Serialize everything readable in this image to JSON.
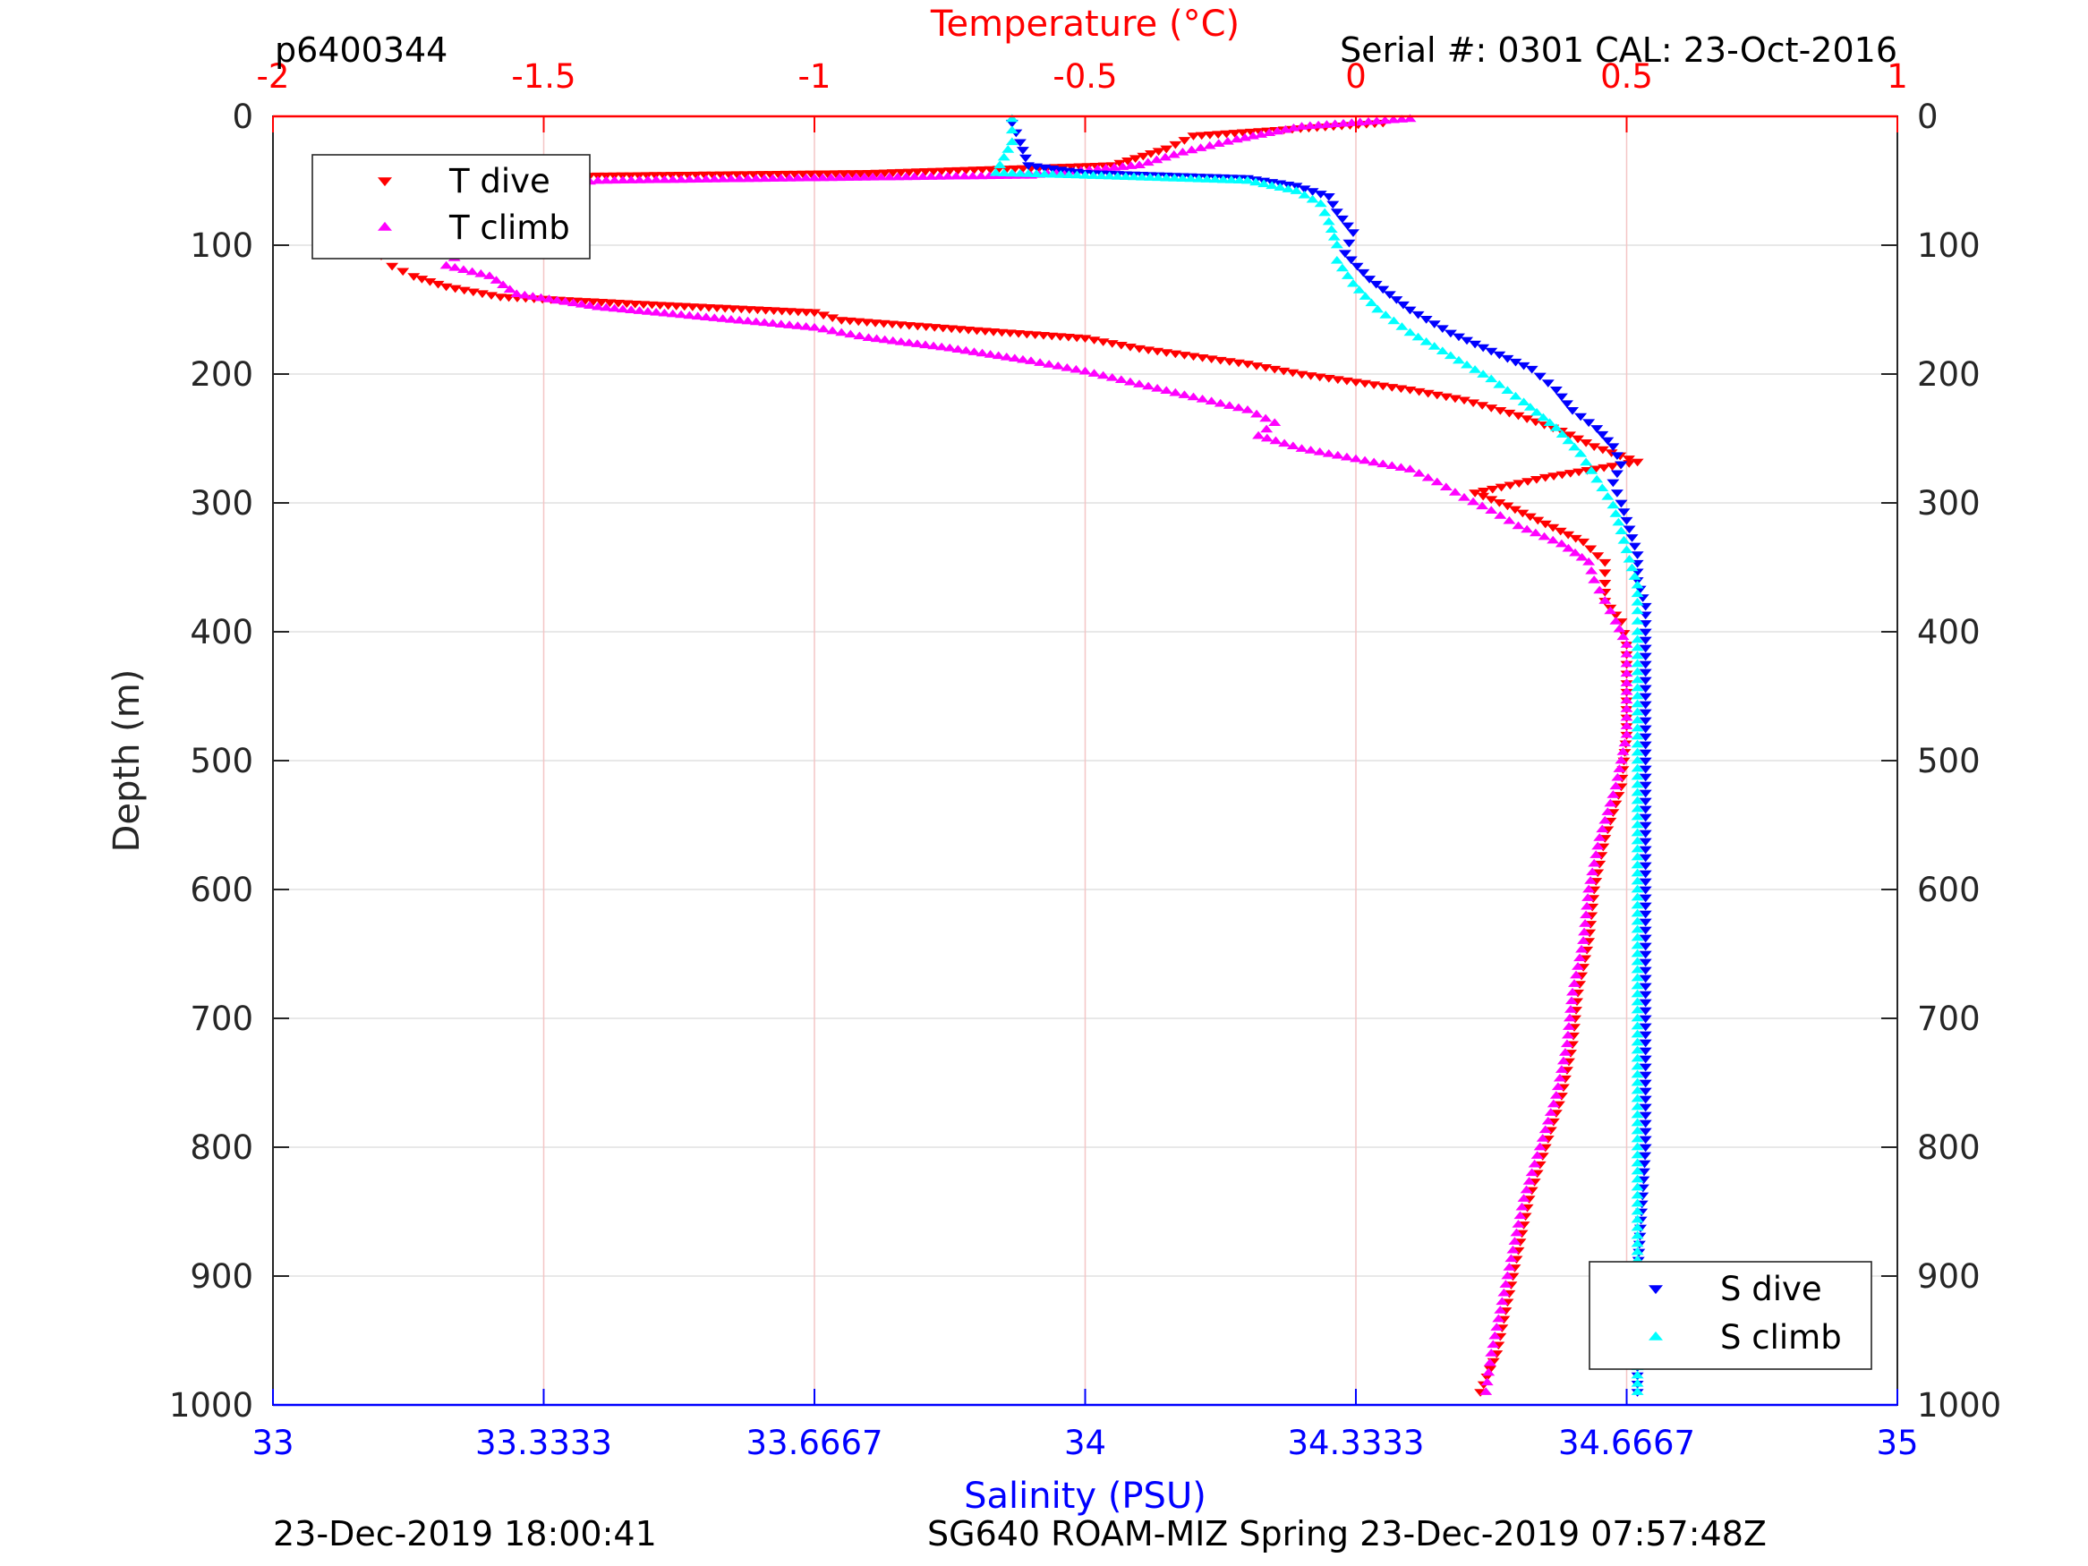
{
  "header": {
    "profile_id": "p6400344",
    "serial": "Serial #: 0301  CAL: 23-Oct-2016"
  },
  "footer": {
    "left": "23-Dec-2019 18:00:41",
    "right": "SG640 ROAM-MIZ Spring 23-Dec-2019 07:57:48Z"
  },
  "colors": {
    "temperature_axis": "#ff0000",
    "salinity_axis": "#0000ff",
    "t_dive": "#ff0000",
    "t_climb": "#ff00ff",
    "s_dive": "#0000ff",
    "s_climb": "#00ffff",
    "grid": "#e0e0e0",
    "temp_grid": "#f4c6c6"
  },
  "chart_data": {
    "type": "scatter",
    "title": "",
    "ylabel": "Depth (m)",
    "ylim": [
      0,
      1000
    ],
    "y_reversed": true,
    "y_ticks": [
      0,
      100,
      200,
      300,
      400,
      500,
      600,
      700,
      800,
      900,
      1000
    ],
    "x_top": {
      "label": "Temperature (°C)",
      "range": [
        -2,
        1
      ],
      "ticks": [
        -2,
        -1.5,
        -1,
        -0.5,
        0,
        0.5,
        1
      ],
      "tick_labels": [
        "-2",
        "-1.5",
        "-1",
        "-0.5",
        "0",
        "0.5",
        "1"
      ]
    },
    "x_bottom": {
      "label": "Salinity (PSU)",
      "range": [
        33,
        35
      ],
      "ticks": [
        33,
        33.3333,
        33.6667,
        34,
        34.3333,
        34.6667,
        35
      ],
      "tick_labels": [
        "33",
        "33.3333",
        "33.6667",
        "34",
        "34.3333",
        "34.6667",
        "35"
      ]
    },
    "grid": true,
    "legends": [
      {
        "placement": "top-left",
        "entries": [
          "T dive",
          "T climb"
        ]
      },
      {
        "placement": "bottom-right",
        "entries": [
          "S dive",
          "S climb"
        ]
      }
    ],
    "series": [
      {
        "name": "T dive",
        "axis": "temperature",
        "marker": "triangle-down",
        "points": [
          [
            0.05,
            5
          ],
          [
            -0.3,
            15
          ],
          [
            -0.35,
            25
          ],
          [
            -0.45,
            38
          ],
          [
            -0.9,
            44
          ],
          [
            -1.4,
            46
          ],
          [
            -1.6,
            48
          ],
          [
            -1.65,
            56
          ],
          [
            -1.68,
            64
          ],
          [
            -1.6,
            74
          ],
          [
            -1.62,
            82
          ],
          [
            -1.58,
            95
          ],
          [
            -1.7,
            100
          ],
          [
            -1.8,
            108
          ],
          [
            -1.78,
            116
          ],
          [
            -1.74,
            124
          ],
          [
            -1.68,
            132
          ],
          [
            -1.58,
            140
          ],
          [
            -1.3,
            146
          ],
          [
            -1.0,
            152
          ],
          [
            -0.95,
            158
          ],
          [
            -0.7,
            166
          ],
          [
            -0.5,
            172
          ],
          [
            -0.4,
            180
          ],
          [
            -0.3,
            186
          ],
          [
            -0.2,
            192
          ],
          [
            -0.1,
            200
          ],
          [
            0.0,
            206
          ],
          [
            0.1,
            212
          ],
          [
            0.2,
            220
          ],
          [
            0.3,
            232
          ],
          [
            0.38,
            244
          ],
          [
            0.44,
            256
          ],
          [
            0.52,
            268
          ],
          [
            0.35,
            280
          ],
          [
            0.22,
            292
          ],
          [
            0.28,
            302
          ],
          [
            0.35,
            316
          ],
          [
            0.42,
            330
          ],
          [
            0.46,
            346
          ],
          [
            0.46,
            362
          ],
          [
            0.46,
            376
          ],
          [
            0.49,
            392
          ],
          [
            0.5,
            410
          ],
          [
            0.5,
            440
          ],
          [
            0.5,
            480
          ],
          [
            0.49,
            520
          ],
          [
            0.46,
            560
          ],
          [
            0.44,
            600
          ],
          [
            0.43,
            640
          ],
          [
            0.41,
            680
          ],
          [
            0.4,
            720
          ],
          [
            0.38,
            760
          ],
          [
            0.35,
            800
          ],
          [
            0.32,
            840
          ],
          [
            0.3,
            880
          ],
          [
            0.28,
            920
          ],
          [
            0.26,
            960
          ],
          [
            0.23,
            990
          ]
        ]
      },
      {
        "name": "T climb",
        "axis": "temperature",
        "marker": "triangle-up",
        "points": [
          [
            0.1,
            2
          ],
          [
            -0.1,
            8
          ],
          [
            -0.22,
            18
          ],
          [
            -0.32,
            28
          ],
          [
            -0.4,
            38
          ],
          [
            -0.6,
            46
          ],
          [
            -1.0,
            48
          ],
          [
            -1.4,
            50
          ],
          [
            -1.58,
            58
          ],
          [
            -1.68,
            68
          ],
          [
            -1.7,
            80
          ],
          [
            -1.68,
            90
          ],
          [
            -1.65,
            104
          ],
          [
            -1.68,
            116
          ],
          [
            -1.6,
            124
          ],
          [
            -1.55,
            138
          ],
          [
            -1.4,
            148
          ],
          [
            -1.2,
            156
          ],
          [
            -1.0,
            164
          ],
          [
            -0.9,
            172
          ],
          [
            -0.75,
            180
          ],
          [
            -0.6,
            190
          ],
          [
            -0.5,
            198
          ],
          [
            -0.4,
            208
          ],
          [
            -0.3,
            218
          ],
          [
            -0.2,
            228
          ],
          [
            -0.15,
            238
          ],
          [
            -0.18,
            248
          ],
          [
            -0.1,
            258
          ],
          [
            0.0,
            266
          ],
          [
            0.1,
            274
          ],
          [
            0.15,
            284
          ],
          [
            0.2,
            296
          ],
          [
            0.25,
            306
          ],
          [
            0.3,
            318
          ],
          [
            0.38,
            332
          ],
          [
            0.43,
            346
          ],
          [
            0.44,
            360
          ],
          [
            0.46,
            376
          ],
          [
            0.48,
            392
          ],
          [
            0.5,
            410
          ],
          [
            0.5,
            440
          ],
          [
            0.5,
            480
          ],
          [
            0.48,
            520
          ],
          [
            0.45,
            560
          ],
          [
            0.43,
            600
          ],
          [
            0.42,
            640
          ],
          [
            0.4,
            680
          ],
          [
            0.39,
            720
          ],
          [
            0.37,
            760
          ],
          [
            0.34,
            800
          ],
          [
            0.31,
            840
          ],
          [
            0.29,
            880
          ],
          [
            0.27,
            920
          ],
          [
            0.25,
            960
          ],
          [
            0.24,
            990
          ]
        ]
      },
      {
        "name": "S dive",
        "axis": "salinity",
        "marker": "triangle-down",
        "points": [
          [
            33.91,
            5
          ],
          [
            33.92,
            20
          ],
          [
            33.93,
            38
          ],
          [
            34.0,
            44
          ],
          [
            34.2,
            48
          ],
          [
            34.26,
            54
          ],
          [
            34.3,
            62
          ],
          [
            34.31,
            74
          ],
          [
            34.33,
            90
          ],
          [
            34.32,
            106
          ],
          [
            34.35,
            126
          ],
          [
            34.4,
            150
          ],
          [
            34.45,
            168
          ],
          [
            34.5,
            182
          ],
          [
            34.55,
            196
          ],
          [
            34.58,
            212
          ],
          [
            34.6,
            228
          ],
          [
            34.63,
            242
          ],
          [
            34.65,
            256
          ],
          [
            34.66,
            270
          ],
          [
            34.65,
            284
          ],
          [
            34.66,
            300
          ],
          [
            34.67,
            320
          ],
          [
            34.68,
            340
          ],
          [
            34.68,
            360
          ],
          [
            34.69,
            380
          ],
          [
            34.69,
            400
          ],
          [
            34.69,
            450
          ],
          [
            34.69,
            500
          ],
          [
            34.69,
            600
          ],
          [
            34.69,
            700
          ],
          [
            34.69,
            800
          ],
          [
            34.68,
            900
          ],
          [
            34.68,
            990
          ]
        ]
      },
      {
        "name": "S climb",
        "axis": "salinity",
        "marker": "triangle-up",
        "points": [
          [
            33.91,
            2
          ],
          [
            33.91,
            20
          ],
          [
            33.89,
            44
          ],
          [
            34.0,
            46
          ],
          [
            34.2,
            50
          ],
          [
            34.26,
            58
          ],
          [
            34.29,
            68
          ],
          [
            34.3,
            82
          ],
          [
            34.31,
            100
          ],
          [
            34.31,
            112
          ],
          [
            34.33,
            130
          ],
          [
            34.36,
            150
          ],
          [
            34.4,
            168
          ],
          [
            34.45,
            186
          ],
          [
            34.5,
            204
          ],
          [
            34.54,
            222
          ],
          [
            34.58,
            242
          ],
          [
            34.61,
            262
          ],
          [
            34.63,
            282
          ],
          [
            34.65,
            302
          ],
          [
            34.66,
            322
          ],
          [
            34.67,
            344
          ],
          [
            34.68,
            364
          ],
          [
            34.68,
            384
          ],
          [
            34.68,
            400
          ],
          [
            34.68,
            450
          ],
          [
            34.68,
            500
          ],
          [
            34.68,
            600
          ],
          [
            34.68,
            700
          ],
          [
            34.68,
            800
          ],
          [
            34.68,
            900
          ],
          [
            34.68,
            990
          ]
        ]
      }
    ]
  }
}
